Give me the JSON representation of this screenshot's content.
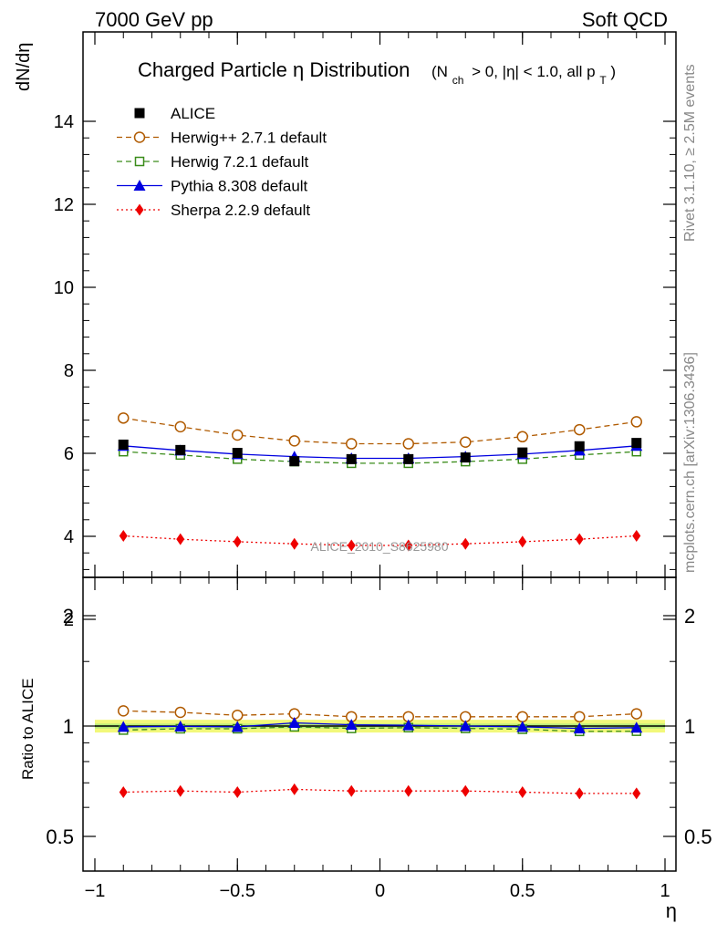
{
  "header": {
    "left": "7000 GeV pp",
    "right": "Soft QCD"
  },
  "side_text": {
    "rivet": "Rivet 3.1.10, ≥ 2.5M events",
    "mcplots": "mcplots.cern.ch [arXiv:1306.3436]"
  },
  "chart_data": {
    "type": "line",
    "title": "Charged Particle η Distribution",
    "title_sub": "(N_ch > 0, |η| < 1.0, all p_T)",
    "title_sub_parts": {
      "open": "(N",
      "ch": "ch",
      "mid": "> 0, |η| < 1.0, all p",
      "T": "T",
      "close": ")"
    },
    "watermark": "ALICE_2010_S8625980",
    "xlabel": "η",
    "ylabel": "dN/dη",
    "ratio_ylabel": "Ratio to ALICE",
    "xlim": [
      -1.0,
      1.0
    ],
    "ylim": [
      1.1,
      14.2
    ],
    "ratio_ylim": [
      0.35,
      2.3
    ],
    "x_ticks": [
      "−1",
      "−0.5",
      "0",
      "0.5",
      "1"
    ],
    "y_ticks": [
      "2",
      "4",
      "6",
      "8",
      "10",
      "12",
      "14"
    ],
    "ratio_ticks": [
      "0.5",
      "1",
      "2"
    ],
    "legend_position": "top-left",
    "x": [
      -0.9,
      -0.7,
      -0.5,
      -0.3,
      -0.1,
      0.1,
      0.3,
      0.5,
      0.7,
      0.9
    ],
    "series": [
      {
        "name": "ALICE",
        "color": "#000000",
        "marker": "filled-square",
        "line": "none",
        "values": [
          6.21,
          6.08,
          6.01,
          5.81,
          5.86,
          5.86,
          5.9,
          6.02,
          6.17,
          6.25
        ],
        "ratio": [
          1,
          1,
          1,
          1,
          1,
          1,
          1,
          1,
          1,
          1
        ]
      },
      {
        "name": "Herwig++ 2.7.1 default",
        "color": "#b05a00",
        "marker": "open-circle",
        "line": "dashed",
        "values": [
          6.85,
          6.64,
          6.44,
          6.3,
          6.23,
          6.23,
          6.27,
          6.4,
          6.57,
          6.76
        ],
        "ratio": [
          1.1,
          1.09,
          1.07,
          1.08,
          1.06,
          1.06,
          1.06,
          1.06,
          1.06,
          1.08
        ]
      },
      {
        "name": "Herwig 7.2.1 default",
        "color": "#3a8c1a",
        "marker": "open-square",
        "line": "dashed",
        "values": [
          6.04,
          5.96,
          5.86,
          5.8,
          5.76,
          5.76,
          5.8,
          5.86,
          5.96,
          6.04
        ],
        "ratio": [
          0.975,
          0.983,
          0.983,
          0.995,
          0.985,
          0.99,
          0.985,
          0.98,
          0.967,
          0.968
        ]
      },
      {
        "name": "Pythia 8.308 default",
        "color": "#0000e0",
        "marker": "filled-triangle",
        "line": "solid",
        "values": [
          6.18,
          6.07,
          5.98,
          5.92,
          5.88,
          5.88,
          5.92,
          5.98,
          6.07,
          6.18
        ],
        "ratio": [
          0.995,
          0.998,
          0.995,
          1.02,
          1.008,
          1.005,
          1.0,
          0.995,
          0.985,
          0.99
        ]
      },
      {
        "name": "Sherpa 2.2.9 default",
        "color": "#ee0000",
        "marker": "filled-diamond",
        "line": "dotted",
        "values": [
          4.01,
          3.93,
          3.87,
          3.82,
          3.78,
          3.78,
          3.82,
          3.87,
          3.93,
          4.01
        ],
        "ratio": [
          0.66,
          0.665,
          0.66,
          0.672,
          0.665,
          0.665,
          0.665,
          0.66,
          0.655,
          0.655
        ]
      }
    ]
  }
}
